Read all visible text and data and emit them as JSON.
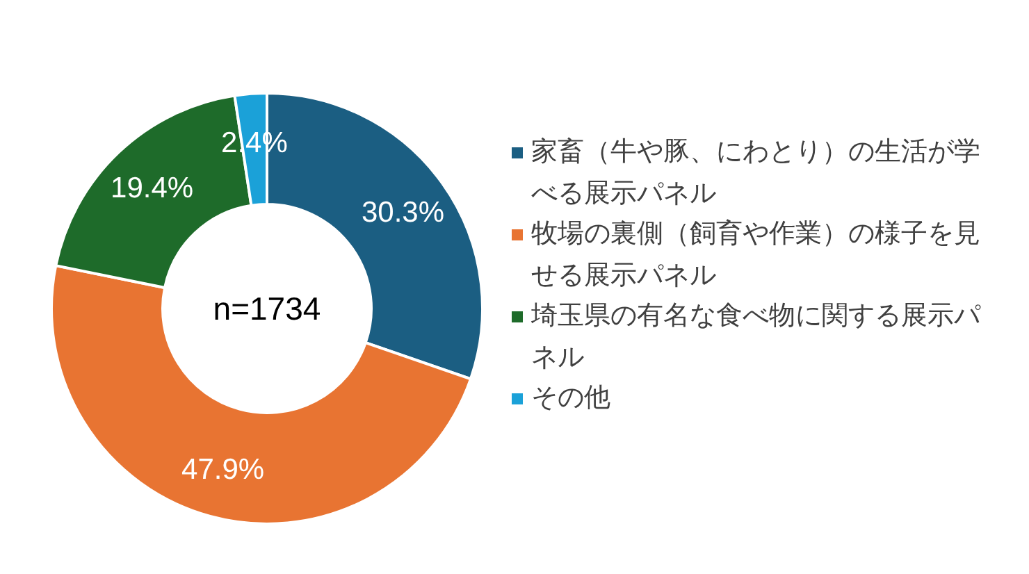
{
  "chart_data": {
    "type": "donut",
    "categories": [
      "家畜（牛や豚、にわとり）の生活が学べる展示パネル",
      "牧場の裏側（飼育や作業）の様子を見せる展示パネル",
      "埼玉県の有名な食べ物に関する展示パネル",
      "その他"
    ],
    "values": [
      30.3,
      47.9,
      19.4,
      2.4
    ],
    "colors": [
      "#1b5e82",
      "#e87432",
      "#1e6b2a",
      "#1ba1d8"
    ],
    "value_labels": [
      "30.3%",
      "47.9%",
      "19.4%",
      "2.4%"
    ],
    "legend": "right",
    "annotations": [
      "n=1734"
    ]
  }
}
